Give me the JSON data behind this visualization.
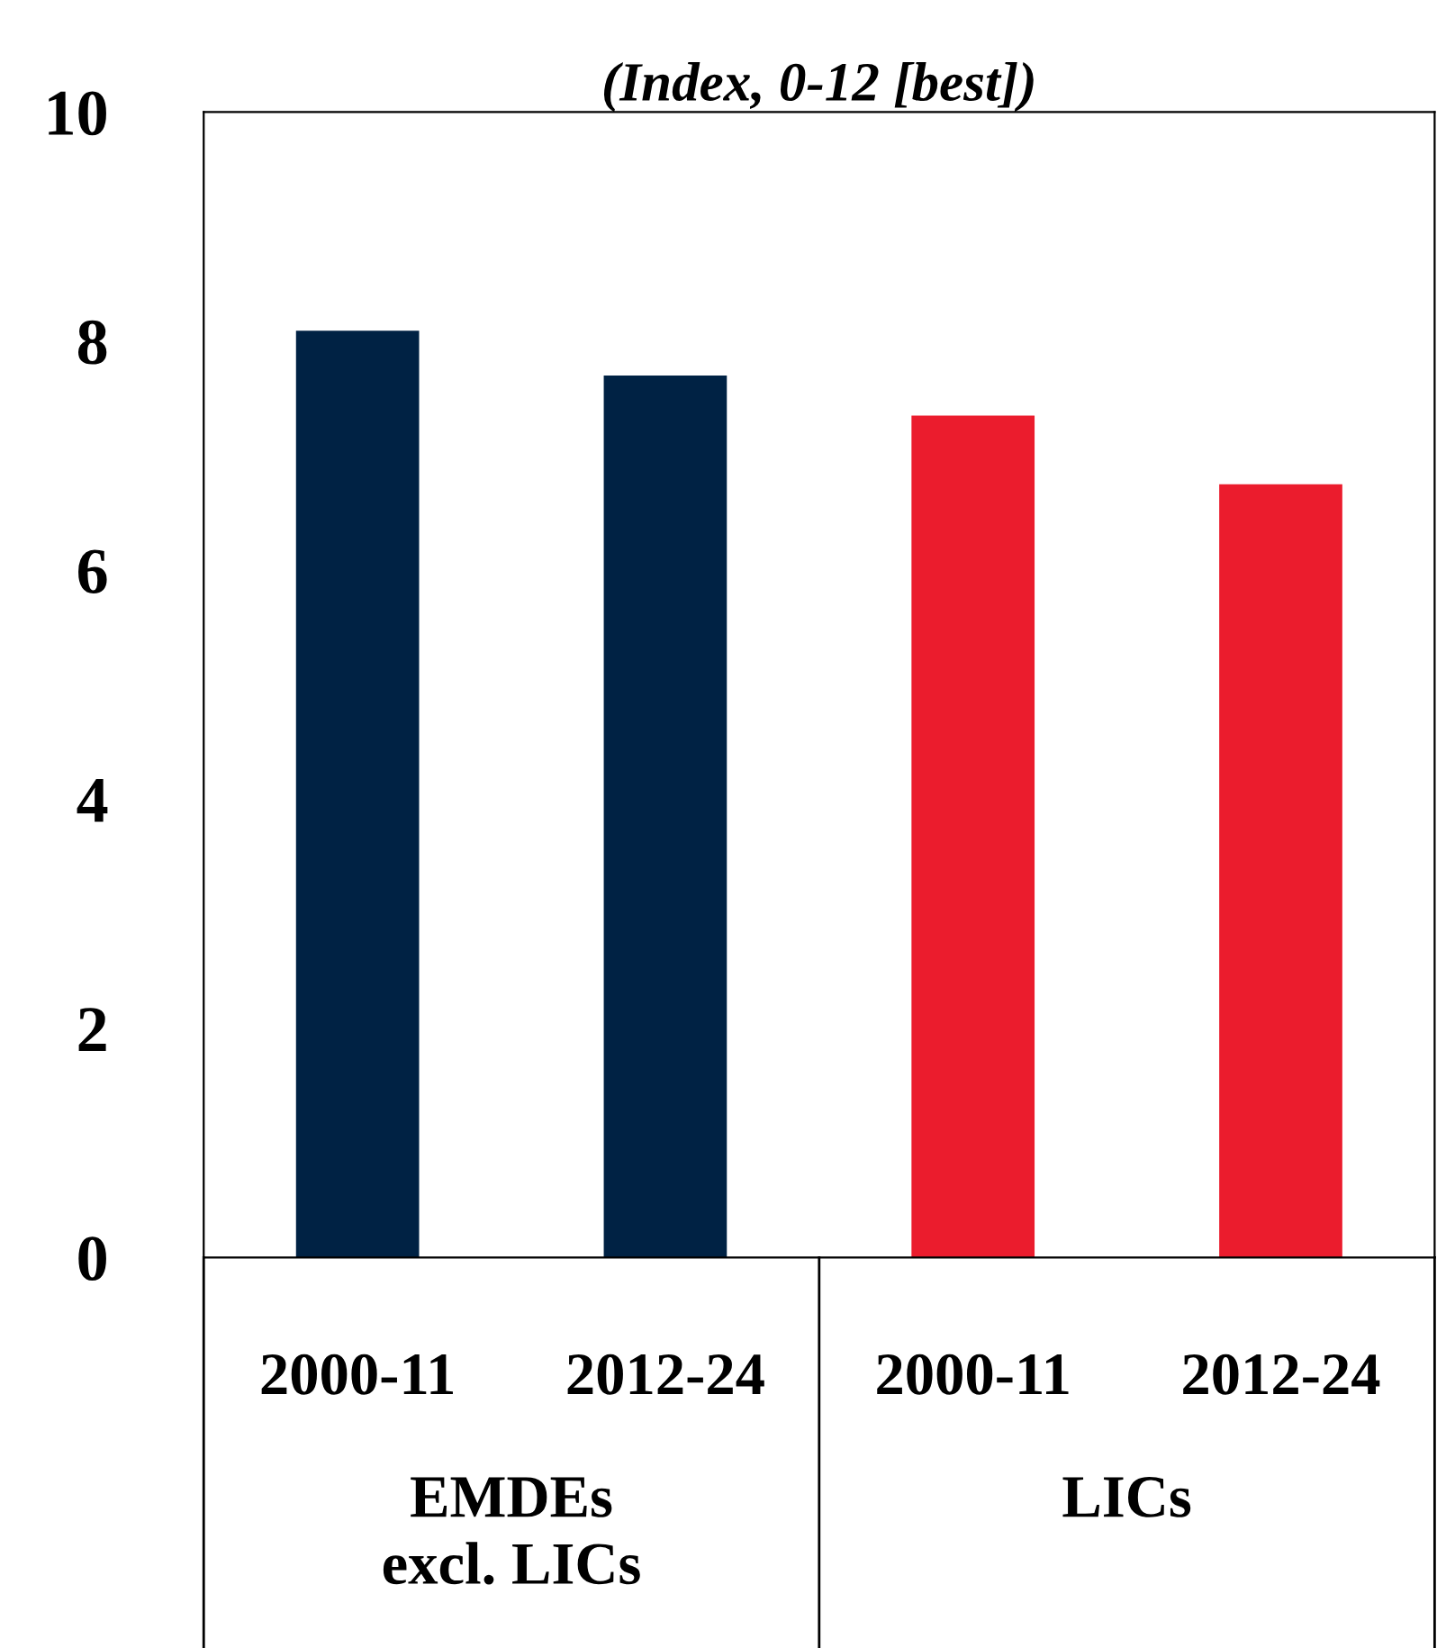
{
  "chart_data": {
    "type": "bar",
    "title": "(Index, 0-12 [best])",
    "categories": [
      "2000-11",
      "2012-24",
      "2000-11",
      "2012-24"
    ],
    "values": [
      8.09,
      7.7,
      7.35,
      6.75
    ],
    "colors": [
      "#002244",
      "#002244",
      "#eb1c2d",
      "#eb1c2d"
    ],
    "annotations": [
      "EMDEs\nexcl. LICs",
      "LICs"
    ],
    "ylim": [
      0,
      10
    ],
    "yticks": [
      0,
      2,
      4,
      6,
      8,
      10
    ],
    "grid": false
  }
}
